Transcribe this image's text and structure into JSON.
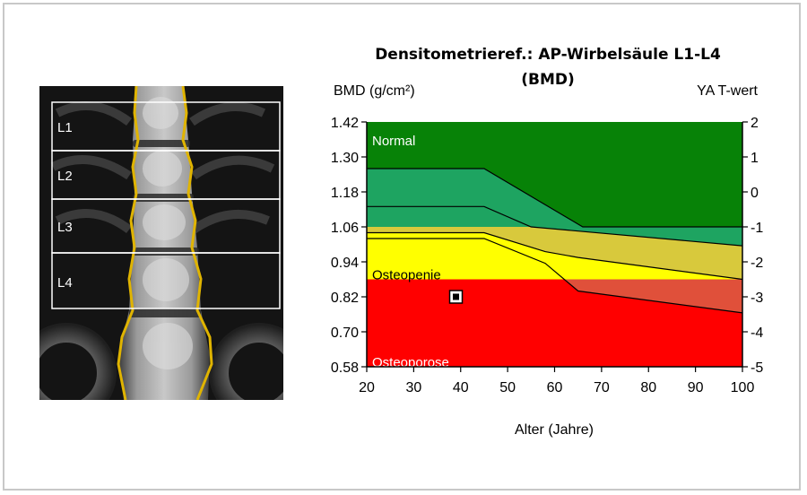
{
  "window": {
    "title": "Densitometrieref.: AP-Wirbelsäule L1-L4",
    "subtitle": "(BMD)"
  },
  "scan": {
    "vertebrae": [
      "L1",
      "L2",
      "L3",
      "L4"
    ]
  },
  "chart_data": {
    "type": "area",
    "title": "Densitometrieref.: AP-Wirbelsäule L1-L4",
    "subtitle": "(BMD)",
    "xlabel": "Alter (Jahre)",
    "ylabel": "BMD (g/cm²)",
    "y2label": "YA T-wert",
    "xlim": [
      20,
      100
    ],
    "ylim": [
      0.58,
      1.42
    ],
    "y2lim": [
      -5,
      2
    ],
    "x_ticks": [
      20,
      30,
      40,
      50,
      60,
      70,
      80,
      90,
      100
    ],
    "y_ticks": [
      "0.58",
      "0.70",
      "0.82",
      "0.94",
      "1.06",
      "1.18",
      "1.30",
      "1.42"
    ],
    "y2_ticks": [
      "-5",
      "-4",
      "-3",
      "-2",
      "-1",
      "0",
      "1",
      "2"
    ],
    "zones": [
      {
        "name": "Normal",
        "y_from": 1.06,
        "y_to": 1.42,
        "color": "#078207"
      },
      {
        "name": "Osteopenie",
        "y_from": 0.88,
        "y_to": 1.06,
        "color": "#ffff00"
      },
      {
        "name": "Osteoporose",
        "y_from": 0.58,
        "y_to": 0.88,
        "color": "#ff0000"
      }
    ],
    "reference_curves": [
      {
        "x": [
          20,
          45,
          66,
          100
        ],
        "y": [
          1.26,
          1.26,
          1.06,
          1.06
        ]
      },
      {
        "x": [
          20,
          45,
          55,
          100
        ],
        "y": [
          1.13,
          1.13,
          1.06,
          0.995
        ]
      },
      {
        "x": [
          20,
          45,
          58,
          65,
          100
        ],
        "y": [
          1.04,
          1.04,
          0.975,
          0.955,
          0.88
        ]
      },
      {
        "x": [
          20,
          45,
          58,
          65,
          100
        ],
        "y": [
          1.02,
          1.02,
          0.935,
          0.84,
          0.765
        ]
      }
    ],
    "measurement": {
      "x": 39,
      "y": 0.82
    }
  }
}
